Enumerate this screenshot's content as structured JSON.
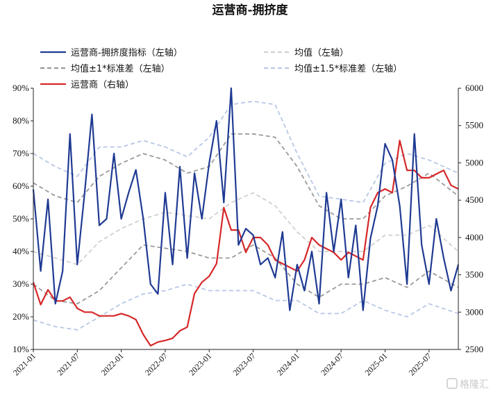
{
  "chart_data": {
    "type": "line",
    "title": "运营商-拥挤度",
    "x_axis": {
      "tick_labels": [
        "2021-01",
        "2021-07",
        "2022-01",
        "2022-07",
        "2023-01",
        "2023-07",
        "2024-01",
        "2024-07",
        "2025-01",
        "2025-07"
      ],
      "range": [
        "2021-01",
        "2025-11"
      ]
    },
    "y_left": {
      "label": "",
      "range": [
        10,
        90
      ],
      "tick_labels": [
        "10%",
        "20%",
        "30%",
        "40%",
        "50%",
        "60%",
        "70%",
        "80%",
        "90%"
      ]
    },
    "y_right": {
      "label": "",
      "range": [
        2500,
        6000
      ],
      "tick_labels": [
        "2500",
        "3000",
        "3500",
        "4000",
        "4500",
        "5000",
        "5500",
        "6000"
      ]
    },
    "grid": false,
    "legend_position": "top",
    "legend": [
      {
        "name": "运营商-拥挤度指标（左轴）",
        "color": "#1f3a93",
        "style": "solid"
      },
      {
        "name": "均值（左轴）",
        "color": "#d0d0d0",
        "style": "dashed"
      },
      {
        "name": "均值±1*标准差（左轴）",
        "color": "#9a9a9a",
        "style": "dashed"
      },
      {
        "name": "均值±1.5*标准差（左轴）",
        "color": "#b8c7e6",
        "style": "dashed"
      },
      {
        "name": "运营商（右轴）",
        "color": "#d62728",
        "style": "solid"
      }
    ],
    "series": [
      {
        "name": "运营商-拥挤度指标（左轴）",
        "axis": "left",
        "color": "#1f3a93",
        "x": [
          "2021-01",
          "2021-02",
          "2021-03",
          "2021-04",
          "2021-05",
          "2021-06",
          "2021-07",
          "2021-08",
          "2021-09",
          "2021-10",
          "2021-11",
          "2021-12",
          "2022-01",
          "2022-02",
          "2022-03",
          "2022-04",
          "2022-05",
          "2022-06",
          "2022-07",
          "2022-08",
          "2022-09",
          "2022-10",
          "2022-11",
          "2022-12",
          "2023-01",
          "2023-02",
          "2023-03",
          "2023-04",
          "2023-05",
          "2023-06",
          "2023-07",
          "2023-08",
          "2023-09",
          "2023-10",
          "2023-11",
          "2023-12",
          "2024-01",
          "2024-02",
          "2024-03",
          "2024-04",
          "2024-05",
          "2024-06",
          "2024-07",
          "2024-08",
          "2024-09",
          "2024-10",
          "2024-11",
          "2024-12",
          "2025-01",
          "2025-02",
          "2025-03",
          "2025-04",
          "2025-05",
          "2025-06",
          "2025-07",
          "2025-08",
          "2025-09",
          "2025-10",
          "2025-11"
        ],
        "y": [
          59,
          34,
          56,
          24,
          34,
          76,
          36,
          58,
          82,
          48,
          50,
          70,
          50,
          58,
          65,
          50,
          30,
          27,
          58,
          36,
          66,
          38,
          64,
          50,
          67,
          80,
          55,
          90,
          42,
          47,
          45,
          36,
          38,
          32,
          46,
          22,
          36,
          28,
          40,
          24,
          58,
          40,
          56,
          32,
          48,
          22,
          44,
          54,
          73,
          68,
          54,
          30,
          76,
          42,
          30,
          50,
          38,
          28,
          36
        ]
      },
      {
        "name": "均值（左轴）",
        "axis": "left",
        "color": "#d0d0d0",
        "x": [
          "2021-01",
          "2021-04",
          "2021-07",
          "2021-10",
          "2022-01",
          "2022-04",
          "2022-07",
          "2022-10",
          "2023-01",
          "2023-04",
          "2023-07",
          "2023-10",
          "2024-01",
          "2024-04",
          "2024-07",
          "2024-10",
          "2025-01",
          "2025-04",
          "2025-07",
          "2025-11"
        ],
        "y": [
          40,
          38,
          36,
          43,
          47,
          50,
          52,
          51,
          50,
          55,
          58,
          54,
          46,
          40,
          40,
          40,
          45,
          45,
          48,
          40
        ]
      },
      {
        "name": "均值+1*标准差（左轴）",
        "axis": "left",
        "color": "#9a9a9a",
        "x": [
          "2021-01",
          "2021-04",
          "2021-07",
          "2021-10",
          "2022-01",
          "2022-04",
          "2022-07",
          "2022-10",
          "2023-01",
          "2023-04",
          "2023-07",
          "2023-10",
          "2024-01",
          "2024-04",
          "2024-07",
          "2024-10",
          "2025-01",
          "2025-04",
          "2025-07",
          "2025-11"
        ],
        "y": [
          61,
          57,
          55,
          63,
          67,
          70,
          68,
          64,
          66,
          76,
          76,
          75,
          66,
          54,
          50,
          50,
          57,
          60,
          64,
          57
        ]
      },
      {
        "name": "均值-1*标准差（左轴）",
        "axis": "left",
        "color": "#9a9a9a",
        "x": [
          "2021-01",
          "2021-04",
          "2021-07",
          "2021-10",
          "2022-01",
          "2022-04",
          "2022-07",
          "2022-10",
          "2023-01",
          "2023-04",
          "2023-07",
          "2023-10",
          "2024-01",
          "2024-04",
          "2024-07",
          "2024-10",
          "2025-01",
          "2025-04",
          "2025-07",
          "2025-11"
        ],
        "y": [
          30,
          25,
          24,
          28,
          35,
          42,
          41,
          40,
          38,
          38,
          42,
          38,
          30,
          26,
          30,
          30,
          32,
          29,
          34,
          29
        ]
      },
      {
        "name": "均值+1.5*标准差（左轴）",
        "axis": "left",
        "color": "#b8c7e6",
        "x": [
          "2021-01",
          "2021-04",
          "2021-07",
          "2021-10",
          "2022-01",
          "2022-04",
          "2022-07",
          "2022-10",
          "2023-01",
          "2023-04",
          "2023-07",
          "2023-10",
          "2024-01",
          "2024-04",
          "2024-07",
          "2024-10",
          "2025-01",
          "2025-04",
          "2025-07",
          "2025-11"
        ],
        "y": [
          70,
          66,
          63,
          72,
          72,
          74,
          72,
          69,
          75,
          85,
          86,
          85,
          70,
          57,
          56,
          55,
          67,
          70,
          68,
          64
        ]
      },
      {
        "name": "均值-1.5*标准差（左轴）",
        "axis": "left",
        "color": "#b8c7e6",
        "x": [
          "2021-01",
          "2021-04",
          "2021-07",
          "2021-10",
          "2022-01",
          "2022-04",
          "2022-07",
          "2022-10",
          "2023-01",
          "2023-04",
          "2023-07",
          "2023-10",
          "2024-01",
          "2024-04",
          "2024-07",
          "2024-10",
          "2025-01",
          "2025-04",
          "2025-07",
          "2025-11"
        ],
        "y": [
          19,
          17,
          16,
          20,
          24,
          27,
          28,
          30,
          28,
          28,
          28,
          25,
          25,
          21,
          21,
          25,
          22,
          20,
          24,
          21
        ]
      },
      {
        "name": "运营商（右轴）",
        "axis": "right",
        "color": "#d62728",
        "x": [
          "2021-01",
          "2021-02",
          "2021-03",
          "2021-04",
          "2021-05",
          "2021-06",
          "2021-07",
          "2021-08",
          "2021-09",
          "2021-10",
          "2021-11",
          "2021-12",
          "2022-01",
          "2022-02",
          "2022-03",
          "2022-04",
          "2022-05",
          "2022-06",
          "2022-07",
          "2022-08",
          "2022-09",
          "2022-10",
          "2022-11",
          "2022-12",
          "2023-01",
          "2023-02",
          "2023-03",
          "2023-04",
          "2023-05",
          "2023-06",
          "2023-07",
          "2023-08",
          "2023-09",
          "2023-10",
          "2023-11",
          "2023-12",
          "2024-01",
          "2024-02",
          "2024-03",
          "2024-04",
          "2024-05",
          "2024-06",
          "2024-07",
          "2024-08",
          "2024-09",
          "2024-10",
          "2024-11",
          "2024-12",
          "2025-01",
          "2025-02",
          "2025-03",
          "2025-04",
          "2025-05",
          "2025-06",
          "2025-07",
          "2025-08",
          "2025-09",
          "2025-10",
          "2025-11"
        ],
        "y": [
          3400,
          3100,
          3300,
          3150,
          3150,
          3200,
          3050,
          3000,
          3000,
          2950,
          2950,
          2950,
          2980,
          2950,
          2900,
          2700,
          2550,
          2600,
          2620,
          2650,
          2750,
          2800,
          3250,
          3400,
          3480,
          3650,
          4400,
          4100,
          4100,
          3800,
          4000,
          4000,
          3900,
          3700,
          3650,
          3600,
          3550,
          3700,
          4000,
          3900,
          3850,
          3800,
          3700,
          3800,
          3750,
          3700,
          4400,
          4600,
          4650,
          4600,
          5300,
          4900,
          4900,
          4800,
          4800,
          4850,
          4900,
          4700,
          4650
        ]
      }
    ]
  },
  "watermark": "格隆汇"
}
